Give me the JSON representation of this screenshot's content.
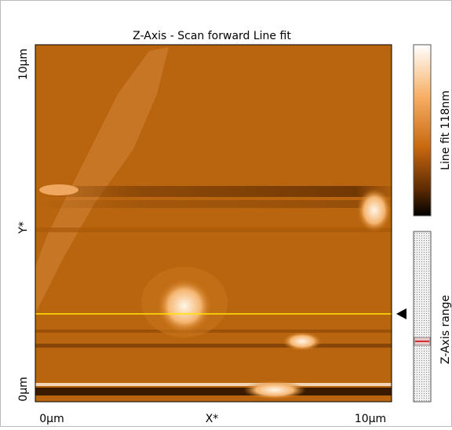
{
  "window": {
    "title": "Z-Axis - Scan forward   Line fit"
  },
  "y_axis": {
    "top": "10µm",
    "name": "Y*",
    "bottom": "0µm"
  },
  "x_axis": {
    "left": "0µm",
    "name": "X*",
    "right": "10µm"
  },
  "color_bar": {
    "label": "Line fit 118nm"
  },
  "range_bar": {
    "label": "Z-Axis range"
  }
}
